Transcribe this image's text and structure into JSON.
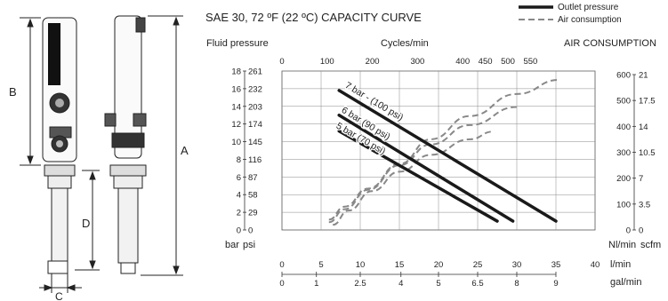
{
  "figure": {
    "dimension_labels": {
      "a": "A",
      "b": "B",
      "c": "C",
      "d": "D"
    }
  },
  "legend": {
    "outlet": "Outlet pressure",
    "air": "Air consumption",
    "outlet_color": "#1a1a1a",
    "air_color": "#888888"
  },
  "chart_data": {
    "type": "line",
    "title": "SAE 30, 72 ºF (22 ºC) CAPACITY CURVE",
    "left_axis_title": "Fluid pressure",
    "top_axis_title": "Cycles/min",
    "right_axis_title": "AIR CONSUMPTION",
    "left_axis_units": [
      "bar",
      "psi"
    ],
    "right_axis_units": [
      "Nl/min",
      "scfm"
    ],
    "bar_ticks": [
      0,
      2,
      4,
      6,
      8,
      10,
      12,
      14,
      16,
      18
    ],
    "psi_ticks": [
      0,
      29,
      58,
      87,
      116,
      145,
      174,
      203,
      232,
      261
    ],
    "nlmin_ticks": [
      0,
      100,
      200,
      300,
      400,
      500,
      600
    ],
    "scfm_ticks": [
      "0",
      "3.5",
      "7",
      "10.5",
      "14",
      "17.5",
      "21"
    ],
    "cycles_ticks": [
      0,
      100,
      200,
      300,
      400,
      450,
      500,
      550
    ],
    "lmin_ticks": [
      0,
      5,
      10,
      15,
      20,
      25,
      30,
      35,
      40
    ],
    "galmin_ticks": [
      "0",
      "1",
      "2.5",
      "4",
      "5",
      "6.5",
      "8",
      "9"
    ],
    "bottom_axis_units": [
      "l/min",
      "gal/min"
    ],
    "xlim": [
      0,
      40
    ],
    "ylim": [
      0,
      18
    ],
    "grid": true,
    "legend_position": "top-right",
    "series": [
      {
        "name": "7 bar - (100 psi)",
        "kind": "outlet",
        "x": [
          7.3,
          35
        ],
        "y": [
          15.8,
          1.0
        ]
      },
      {
        "name": "6 bar (90 psi)",
        "kind": "outlet",
        "x": [
          7.3,
          29.5
        ],
        "y": [
          13.0,
          1.0
        ]
      },
      {
        "name": "5 bar (70 psi)",
        "kind": "outlet",
        "x": [
          7.3,
          27.5
        ],
        "y": [
          11.2,
          1.0
        ]
      },
      {
        "kind": "air",
        "x": [
          6,
          8,
          11,
          15,
          19,
          24,
          30,
          35.5
        ],
        "y_nlmin": [
          40,
          90,
          160,
          255,
          350,
          440,
          525,
          580
        ]
      },
      {
        "kind": "air",
        "x": [
          6,
          8,
          11,
          15,
          19,
          24,
          30
        ],
        "y_nlmin": [
          30,
          80,
          155,
          250,
          330,
          405,
          475
        ]
      },
      {
        "kind": "air",
        "x": [
          6.5,
          8.5,
          11.5,
          15,
          19,
          24,
          27
        ],
        "y_nlmin": [
          20,
          75,
          150,
          225,
          290,
          350,
          380
        ]
      }
    ]
  }
}
